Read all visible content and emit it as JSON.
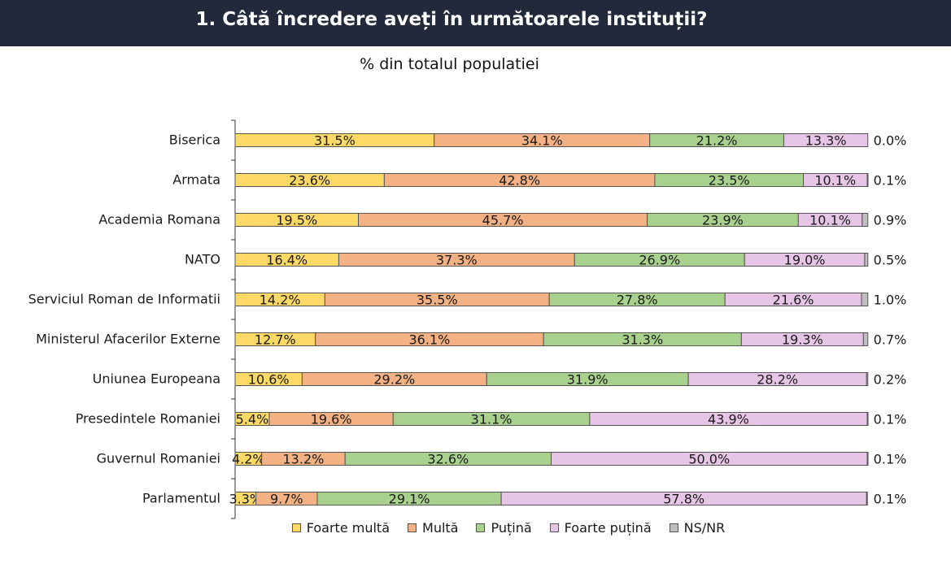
{
  "header": {
    "title": "1. Câtă încredere aveți în următoarele instituții?"
  },
  "chart_data": {
    "type": "bar",
    "orientation": "horizontal",
    "stacked": true,
    "subtitle": "% din totalul populatiei",
    "categories": [
      "Biserica",
      "Armata",
      "Academia Romana",
      "NATO",
      "Serviciul Roman de Informatii",
      "Ministerul Afacerilor Externe",
      "Uniunea Europeana",
      "Presedintele Romaniei",
      "Guvernul Romaniei",
      "Parlamentul"
    ],
    "series": [
      {
        "name": "Foarte multă",
        "color": "#ffd966",
        "values": [
          31.5,
          23.6,
          19.5,
          16.4,
          14.2,
          12.7,
          10.6,
          5.4,
          4.2,
          3.3
        ]
      },
      {
        "name": "Multă",
        "color": "#f4b183",
        "values": [
          34.1,
          42.8,
          45.7,
          37.3,
          35.5,
          36.1,
          29.2,
          19.6,
          13.2,
          9.7
        ]
      },
      {
        "name": "Puțină",
        "color": "#a9d18e",
        "values": [
          21.2,
          23.5,
          23.9,
          26.9,
          27.8,
          31.3,
          31.9,
          31.1,
          32.6,
          29.1
        ]
      },
      {
        "name": "Foarte puțină",
        "color": "#e6c5e6",
        "values": [
          13.3,
          10.1,
          10.1,
          19.0,
          21.6,
          19.3,
          28.2,
          43.9,
          50.0,
          57.8
        ]
      },
      {
        "name": "NS/NR",
        "color": "#bfbfbf",
        "values": [
          0.0,
          0.1,
          0.9,
          0.5,
          1.0,
          0.7,
          0.2,
          0.1,
          0.1,
          0.1
        ]
      }
    ],
    "value_labels": [
      [
        "31.5%",
        "23.6%",
        "19.5%",
        "16.4%",
        "14.2%",
        "12.7%",
        "10.6%",
        "5.4%",
        "4.2%",
        "3.3%"
      ],
      [
        "34.1%",
        "42.8%",
        "45.7%",
        "37.3%",
        "35.5%",
        "36.1%",
        "29.2%",
        "19.6%",
        "13.2%",
        "9.7%"
      ],
      [
        "21.2%",
        "23.5%",
        "23.9%",
        "26.9%",
        "27.8%",
        "31.3%",
        "31.9%",
        "31.1%",
        "32.6%",
        "29.1%"
      ],
      [
        "13.3%",
        "10.1%",
        "10.1%",
        "19.0%",
        "21.6%",
        "19.3%",
        "28.2%",
        "43.9%",
        "50.0%",
        "57.8%"
      ],
      [
        "0.0%",
        "0.1%",
        "0.9%",
        "0.5%",
        "1.0%",
        "0.7%",
        "0.2%",
        "0.1%",
        "0.1%",
        "0.1%"
      ]
    ],
    "xlim": [
      0,
      100
    ],
    "grid": false,
    "legend_position": "bottom"
  }
}
